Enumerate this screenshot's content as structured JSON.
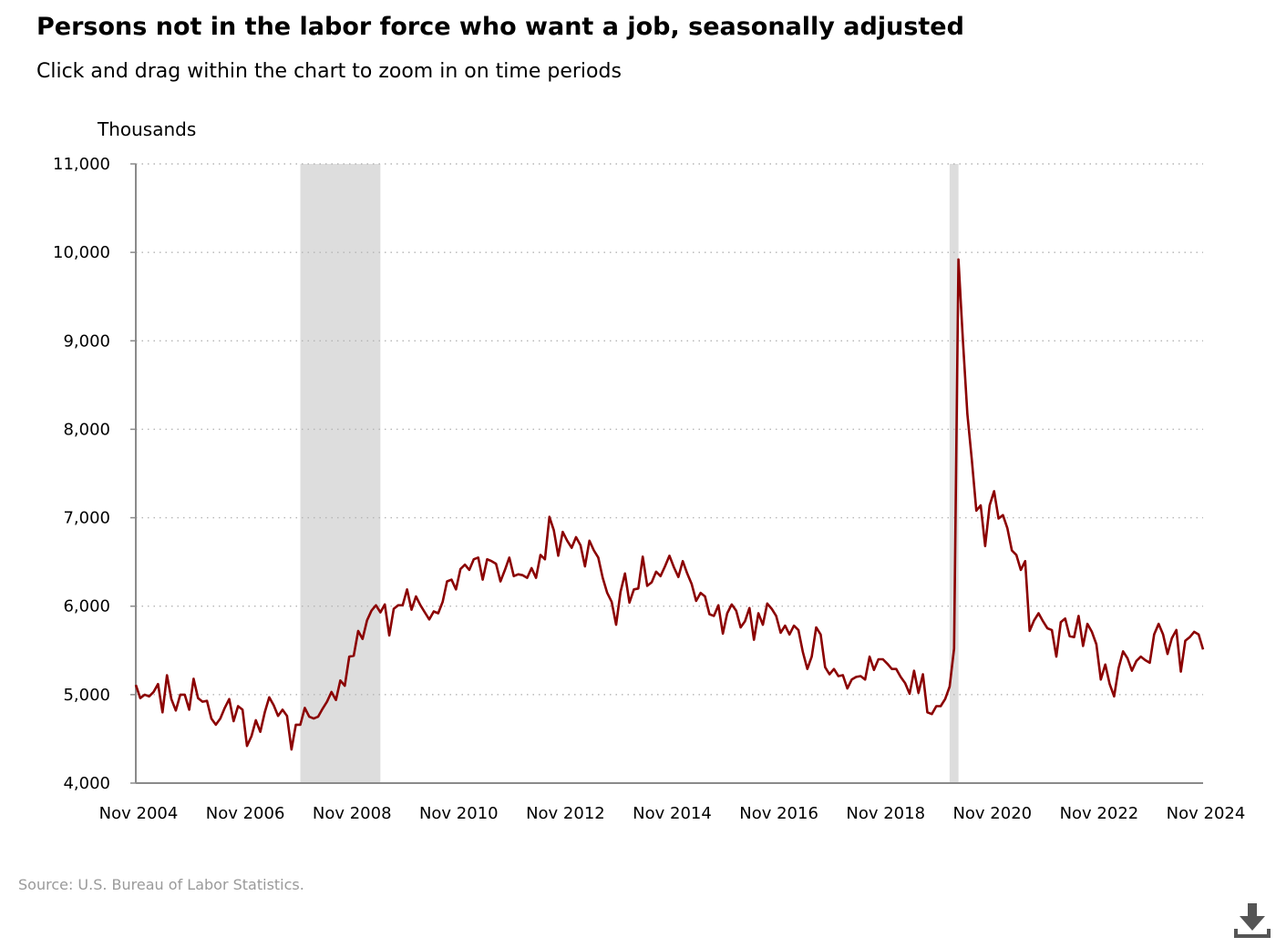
{
  "header": {
    "title": "Persons not in the labor force who want a job, seasonally adjusted",
    "subtitle": "Click and drag within the chart to zoom in on time periods"
  },
  "footer": {
    "source": "Source: U.S. Bureau of Labor Statistics."
  },
  "toolbar": {
    "download_icon": "download-icon"
  },
  "chart_data": {
    "type": "line",
    "title": "Persons not in the labor force who want a job, seasonally adjusted",
    "ylabel": "Thousands",
    "xlabel": "",
    "ylim": [
      4000,
      11000
    ],
    "xlim": [
      "2004-11",
      "2024-11"
    ],
    "yticks": [
      "4,000",
      "5,000",
      "6,000",
      "7,000",
      "8,000",
      "9,000",
      "10,000",
      "11,000"
    ],
    "xticks": [
      "Nov 2004",
      "Nov 2006",
      "Nov 2008",
      "Nov 2010",
      "Nov 2012",
      "Nov 2014",
      "Nov 2016",
      "Nov 2018",
      "Nov 2020",
      "Nov 2022",
      "Nov 2024"
    ],
    "grid": "horizontal dotted",
    "line_color": "#8b0000",
    "recession_color": "#dddddd",
    "recessions": [
      {
        "start": "2007-12",
        "end": "2009-06"
      },
      {
        "start": "2020-02",
        "end": "2020-04"
      }
    ],
    "series": [
      {
        "start": "2004-11",
        "frequency": "monthly",
        "values": [
          5110,
          4960,
          5000,
          4980,
          5030,
          5120,
          4800,
          5220,
          4950,
          4820,
          5000,
          5000,
          4830,
          5180,
          4960,
          4920,
          4930,
          4730,
          4660,
          4730,
          4850,
          4950,
          4700,
          4870,
          4830,
          4420,
          4530,
          4710,
          4580,
          4800,
          4970,
          4880,
          4760,
          4830,
          4760,
          4380,
          4660,
          4660,
          4850,
          4750,
          4730,
          4750,
          4840,
          4920,
          5030,
          4940,
          5160,
          5100,
          5430,
          5440,
          5720,
          5630,
          5840,
          5950,
          6010,
          5930,
          6020,
          5670,
          5970,
          6010,
          6010,
          6190,
          5960,
          6110,
          6010,
          5930,
          5850,
          5940,
          5920,
          6050,
          6280,
          6300,
          6190,
          6420,
          6470,
          6410,
          6530,
          6550,
          6300,
          6530,
          6510,
          6480,
          6280,
          6410,
          6550,
          6340,
          6360,
          6350,
          6320,
          6430,
          6320,
          6580,
          6530,
          7010,
          6860,
          6570,
          6840,
          6740,
          6660,
          6780,
          6690,
          6450,
          6740,
          6630,
          6550,
          6320,
          6150,
          6050,
          5790,
          6160,
          6370,
          6040,
          6190,
          6200,
          6560,
          6230,
          6270,
          6390,
          6340,
          6450,
          6570,
          6440,
          6330,
          6510,
          6370,
          6250,
          6060,
          6150,
          6110,
          5910,
          5890,
          6010,
          5690,
          5920,
          6020,
          5950,
          5760,
          5830,
          5980,
          5620,
          5920,
          5790,
          6030,
          5970,
          5890,
          5700,
          5780,
          5680,
          5780,
          5730,
          5480,
          5290,
          5430,
          5760,
          5680,
          5310,
          5230,
          5290,
          5210,
          5220,
          5070,
          5170,
          5200,
          5210,
          5170,
          5430,
          5280,
          5400,
          5400,
          5350,
          5290,
          5290,
          5200,
          5130,
          5010,
          5270,
          5020,
          5230,
          4800,
          4780,
          4870,
          4870,
          4950,
          5090,
          5520,
          9920,
          9000,
          8170,
          7650,
          7080,
          7140,
          6680,
          7140,
          7300,
          6990,
          7030,
          6880,
          6630,
          6580,
          6410,
          6510,
          5720,
          5840,
          5920,
          5830,
          5750,
          5730,
          5430,
          5820,
          5860,
          5660,
          5650,
          5890,
          5550,
          5800,
          5710,
          5570,
          5170,
          5340,
          5120,
          4980,
          5300,
          5490,
          5410,
          5270,
          5380,
          5430,
          5390,
          5360,
          5680,
          5800,
          5680,
          5460,
          5640,
          5730,
          5260,
          5610,
          5650,
          5710,
          5680,
          5510
        ]
      }
    ]
  }
}
